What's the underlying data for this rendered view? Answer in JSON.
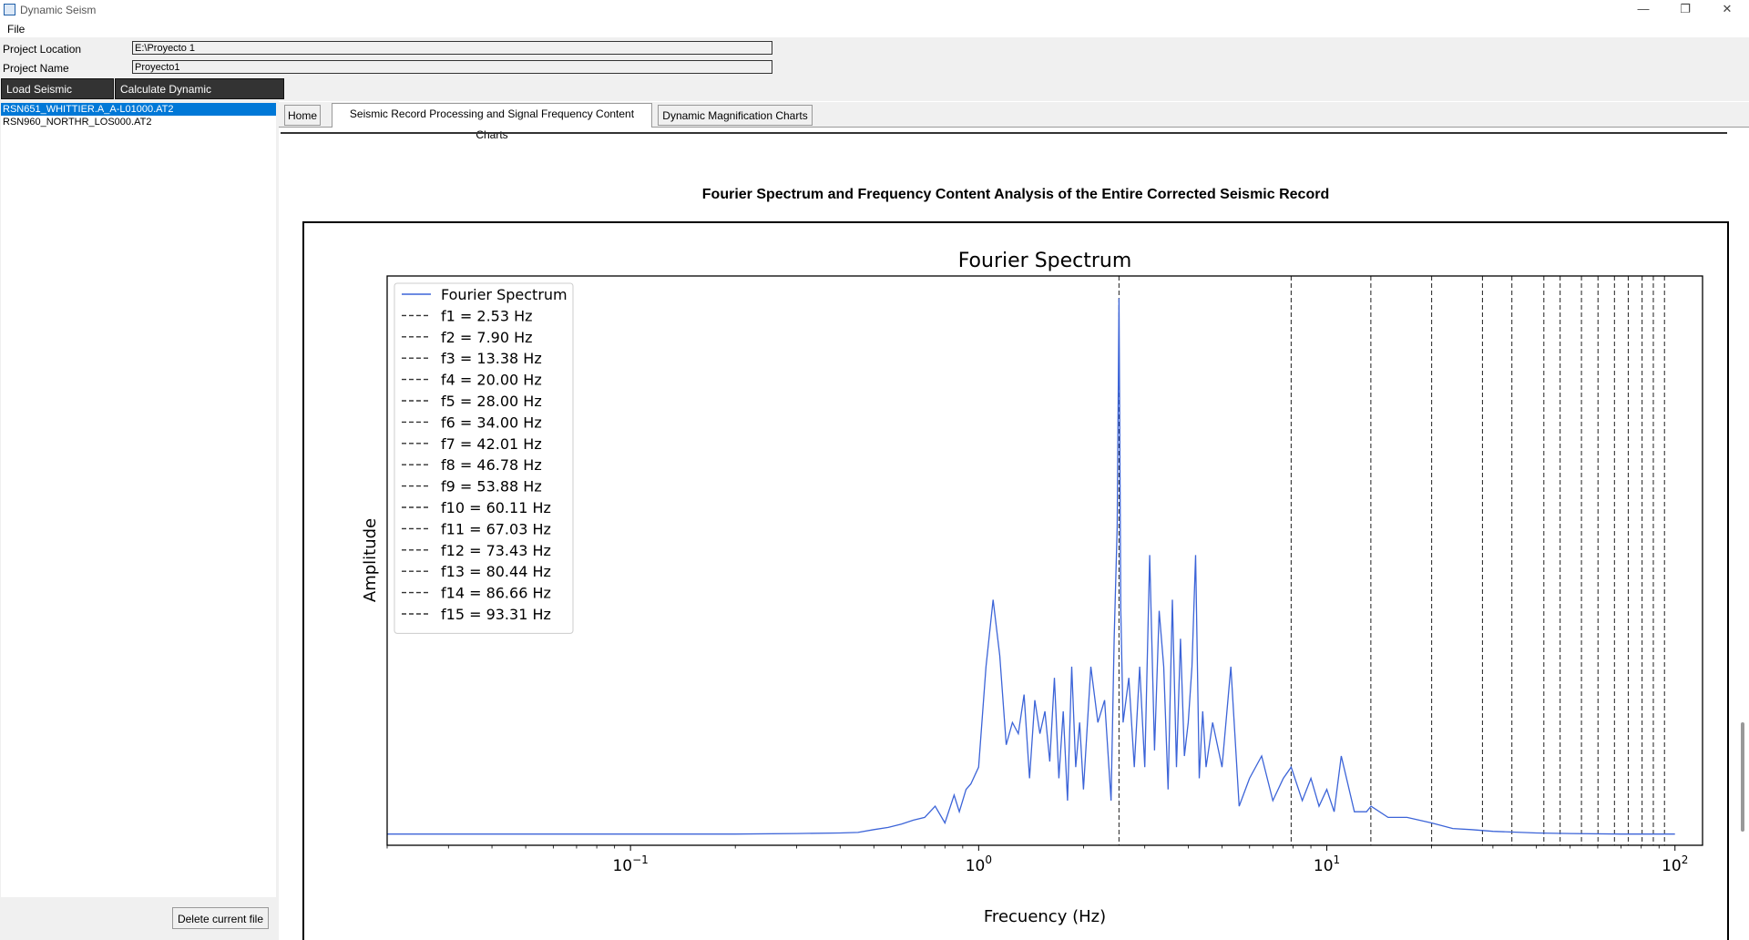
{
  "window": {
    "title": "Dynamic Seism"
  },
  "menu": {
    "file": "File"
  },
  "project": {
    "location_label": "Project Location",
    "location_value": "E:\\Proyecto 1",
    "name_label": "Project Name",
    "name_value": "Proyecto1"
  },
  "toolbar": {
    "load_label": "Load Seismic Records",
    "calc_label": "Calculate Dynamic Magnification"
  },
  "records": [
    "RSN651_WHITTIER.A_A-L01000.AT2",
    "RSN960_NORTHR_LOS000.AT2"
  ],
  "delete_label": "Delete current file",
  "tabs": [
    {
      "label": "Home"
    },
    {
      "label": "Seismic Record Processing and Signal Frequency Content Charts"
    },
    {
      "label": "Dynamic Magnification Charts"
    }
  ],
  "section_caption": "Fourier Spectrum and Frequency Content Analysis of the Entire Corrected Seismic Record",
  "chart_data": {
    "type": "line",
    "title": "Fourier Spectrum",
    "xlabel": "Frecuency (Hz)",
    "ylabel": "Amplitude",
    "x_scale": "log",
    "xlim": [
      0.02,
      120
    ],
    "ylim": [
      -0.02,
      1.0
    ],
    "x_ticks": [
      {
        "value": 0.1,
        "label": "10",
        "exp": "−1"
      },
      {
        "value": 1,
        "label": "10",
        "exp": "0"
      },
      {
        "value": 10,
        "label": "10",
        "exp": "1"
      },
      {
        "value": 100,
        "label": "10",
        "exp": "2"
      }
    ],
    "y_ticks_visible": false,
    "grid": false,
    "legend_position": "upper-left",
    "series_name": "Fourier Spectrum",
    "series_color": "#3c64d8",
    "marker_color": "#333333",
    "spectrum": {
      "x": [
        0.02,
        0.1,
        0.2,
        0.3,
        0.4,
        0.45,
        0.5,
        0.55,
        0.6,
        0.65,
        0.7,
        0.75,
        0.8,
        0.85,
        0.88,
        0.92,
        0.95,
        1.0,
        1.05,
        1.1,
        1.15,
        1.2,
        1.25,
        1.3,
        1.35,
        1.4,
        1.45,
        1.5,
        1.55,
        1.6,
        1.65,
        1.7,
        1.75,
        1.8,
        1.85,
        1.9,
        1.95,
        2.0,
        2.1,
        2.2,
        2.3,
        2.4,
        2.45,
        2.5,
        2.53,
        2.56,
        2.6,
        2.7,
        2.8,
        2.9,
        3.0,
        3.1,
        3.2,
        3.3,
        3.4,
        3.5,
        3.6,
        3.7,
        3.8,
        3.9,
        4.0,
        4.1,
        4.2,
        4.3,
        4.4,
        4.5,
        4.7,
        5.0,
        5.3,
        5.6,
        6.0,
        6.5,
        7.0,
        7.5,
        7.9,
        8.5,
        9.0,
        9.5,
        10.0,
        10.5,
        11.0,
        12.0,
        13.0,
        13.4,
        15.0,
        17.0,
        20.0,
        23.0,
        26.0,
        30.0,
        40.0,
        50.0,
        70.0,
        100.0
      ],
      "y": [
        0.0,
        0.0,
        0.0,
        0.001,
        0.002,
        0.003,
        0.008,
        0.012,
        0.018,
        0.025,
        0.03,
        0.05,
        0.02,
        0.07,
        0.04,
        0.08,
        0.09,
        0.12,
        0.3,
        0.42,
        0.32,
        0.16,
        0.2,
        0.18,
        0.25,
        0.1,
        0.24,
        0.18,
        0.22,
        0.13,
        0.28,
        0.1,
        0.22,
        0.06,
        0.3,
        0.12,
        0.2,
        0.08,
        0.3,
        0.2,
        0.24,
        0.06,
        0.35,
        0.55,
        0.96,
        0.4,
        0.2,
        0.28,
        0.12,
        0.3,
        0.12,
        0.5,
        0.15,
        0.4,
        0.3,
        0.08,
        0.42,
        0.12,
        0.35,
        0.14,
        0.2,
        0.3,
        0.5,
        0.1,
        0.22,
        0.12,
        0.2,
        0.12,
        0.3,
        0.05,
        0.1,
        0.14,
        0.06,
        0.1,
        0.12,
        0.06,
        0.1,
        0.05,
        0.08,
        0.04,
        0.14,
        0.04,
        0.04,
        0.05,
        0.03,
        0.03,
        0.02,
        0.01,
        0.008,
        0.005,
        0.002,
        0.001,
        0.0,
        0.0
      ]
    },
    "markers": [
      {
        "label": "f1 = 2.53 Hz",
        "freq": 2.53
      },
      {
        "label": "f2 = 7.90 Hz",
        "freq": 7.9
      },
      {
        "label": "f3 = 13.38 Hz",
        "freq": 13.38
      },
      {
        "label": "f4 = 20.00 Hz",
        "freq": 20.0
      },
      {
        "label": "f5 = 28.00 Hz",
        "freq": 28.0
      },
      {
        "label": "f6 = 34.00 Hz",
        "freq": 34.0
      },
      {
        "label": "f7 = 42.01 Hz",
        "freq": 42.01
      },
      {
        "label": "f8 = 46.78 Hz",
        "freq": 46.78
      },
      {
        "label": "f9 = 53.88 Hz",
        "freq": 53.88
      },
      {
        "label": "f10 = 60.11 Hz",
        "freq": 60.11
      },
      {
        "label": "f11 = 67.03 Hz",
        "freq": 67.03
      },
      {
        "label": "f12 = 73.43 Hz",
        "freq": 73.43
      },
      {
        "label": "f13 = 80.44 Hz",
        "freq": 80.44
      },
      {
        "label": "f14 = 86.66 Hz",
        "freq": 86.66
      },
      {
        "label": "f15 = 93.31 Hz",
        "freq": 93.31
      }
    ]
  }
}
